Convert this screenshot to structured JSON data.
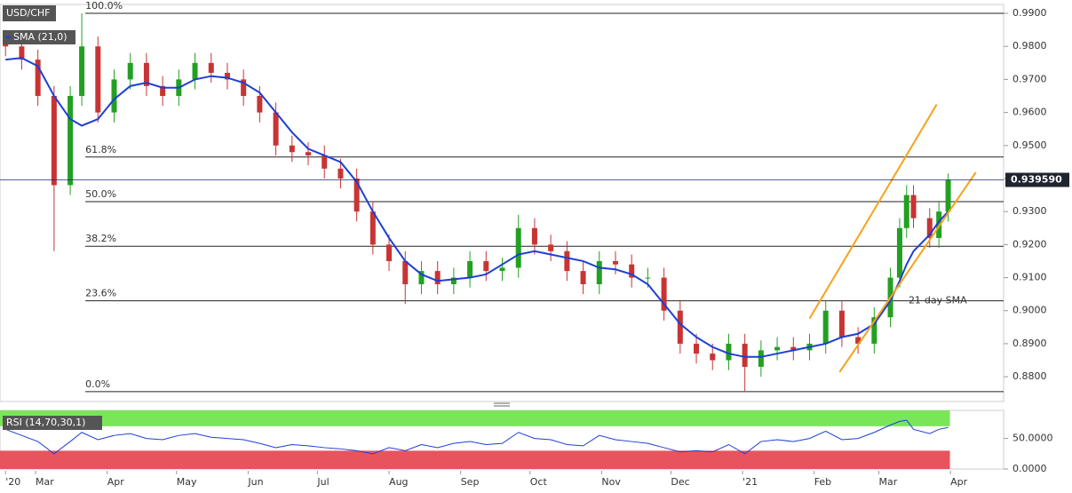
{
  "chart_data": [
    {
      "type": "candlestick",
      "title": "USD/CHF",
      "x": [
        47,
        54,
        61,
        68,
        75,
        80,
        87,
        94,
        101,
        108,
        115,
        122,
        129,
        136,
        143,
        150,
        157,
        164,
        171,
        178,
        185,
        192,
        199,
        206,
        213,
        220,
        227,
        234,
        241,
        248,
        255,
        262,
        269,
        276,
        283,
        290,
        297,
        304,
        311,
        318,
        325,
        332,
        339,
        346,
        353,
        360,
        367,
        374,
        381,
        388,
        395,
        402,
        409,
        416,
        423,
        430,
        434,
        437,
        440,
        447,
        451,
        455
      ],
      "open": [
        0.982,
        0.98,
        0.976,
        0.965,
        0.938,
        0.965,
        0.98,
        0.96,
        0.97,
        0.975,
        0.968,
        0.965,
        0.97,
        0.975,
        0.972,
        0.97,
        0.965,
        0.96,
        0.95,
        0.948,
        0.947,
        0.943,
        0.94,
        0.93,
        0.92,
        0.915,
        0.908,
        0.912,
        0.908,
        0.91,
        0.915,
        0.912,
        0.913,
        0.925,
        0.92,
        0.918,
        0.912,
        0.908,
        0.915,
        0.914,
        0.91,
        0.91,
        0.9,
        0.89,
        0.887,
        0.885,
        0.89,
        0.883,
        0.888,
        0.889,
        0.888,
        0.89,
        0.9,
        0.892,
        0.89,
        0.898,
        0.91,
        0.925,
        0.935,
        0.928,
        0.922,
        0.93
      ],
      "high": [
        0.985,
        0.983,
        0.979,
        0.968,
        0.968,
        0.99,
        0.983,
        0.973,
        0.978,
        0.978,
        0.971,
        0.973,
        0.978,
        0.978,
        0.975,
        0.973,
        0.968,
        0.963,
        0.953,
        0.951,
        0.95,
        0.946,
        0.943,
        0.933,
        0.923,
        0.918,
        0.915,
        0.915,
        0.913,
        0.918,
        0.918,
        0.916,
        0.929,
        0.928,
        0.923,
        0.921,
        0.915,
        0.918,
        0.918,
        0.917,
        0.913,
        0.913,
        0.903,
        0.893,
        0.89,
        0.893,
        0.893,
        0.891,
        0.892,
        0.892,
        0.893,
        0.903,
        0.903,
        0.895,
        0.901,
        0.913,
        0.928,
        0.938,
        0.938,
        0.931,
        0.933,
        0.9415
      ],
      "low": [
        0.977,
        0.973,
        0.962,
        0.918,
        0.935,
        0.962,
        0.957,
        0.957,
        0.967,
        0.965,
        0.962,
        0.962,
        0.967,
        0.969,
        0.967,
        0.962,
        0.957,
        0.947,
        0.945,
        0.944,
        0.94,
        0.937,
        0.927,
        0.917,
        0.912,
        0.902,
        0.905,
        0.905,
        0.905,
        0.907,
        0.909,
        0.909,
        0.91,
        0.917,
        0.915,
        0.909,
        0.905,
        0.905,
        0.911,
        0.907,
        0.907,
        0.897,
        0.887,
        0.884,
        0.882,
        0.882,
        0.8757,
        0.88,
        0.885,
        0.885,
        0.885,
        0.887,
        0.889,
        0.887,
        0.887,
        0.895,
        0.907,
        0.922,
        0.925,
        0.919,
        0.919,
        0.927
      ],
      "close": [
        0.98,
        0.976,
        0.965,
        0.938,
        0.965,
        0.98,
        0.96,
        0.97,
        0.975,
        0.968,
        0.965,
        0.97,
        0.975,
        0.972,
        0.97,
        0.965,
        0.96,
        0.95,
        0.948,
        0.947,
        0.943,
        0.94,
        0.93,
        0.92,
        0.915,
        0.908,
        0.912,
        0.908,
        0.91,
        0.915,
        0.912,
        0.913,
        0.925,
        0.92,
        0.918,
        0.912,
        0.908,
        0.915,
        0.914,
        0.91,
        0.91,
        0.9,
        0.89,
        0.887,
        0.885,
        0.89,
        0.883,
        0.888,
        0.889,
        0.888,
        0.89,
        0.9,
        0.892,
        0.89,
        0.898,
        0.91,
        0.925,
        0.935,
        0.928,
        0.922,
        0.93,
        0.93959
      ],
      "up_color": "#22a022",
      "down_color": "#c83434",
      "series": [
        {
          "name": "SMA (21,0)",
          "color": "#1c3fd6",
          "values": [
            0.976,
            0.9765,
            0.974,
            0.965,
            0.958,
            0.956,
            0.958,
            0.964,
            0.968,
            0.969,
            0.9675,
            0.9675,
            0.97,
            0.971,
            0.9705,
            0.969,
            0.966,
            0.96,
            0.954,
            0.949,
            0.947,
            0.945,
            0.939,
            0.93,
            0.922,
            0.915,
            0.911,
            0.909,
            0.9095,
            0.91,
            0.911,
            0.914,
            0.917,
            0.918,
            0.917,
            0.916,
            0.915,
            0.913,
            0.9125,
            0.911,
            0.908,
            0.902,
            0.896,
            0.892,
            0.889,
            0.887,
            0.886,
            0.886,
            0.887,
            0.888,
            0.889,
            0.89,
            0.892,
            0.893,
            0.896,
            0.903,
            0.909,
            0.914,
            0.918,
            0.923,
            0.927,
            0.93
          ]
        }
      ],
      "fib_levels": [
        {
          "label": "100.0%",
          "value": 0.99
        },
        {
          "label": "61.8%",
          "value": 0.9465
        },
        {
          "label": "50.0%",
          "value": 0.933
        },
        {
          "label": "38.2%",
          "value": 0.9195
        },
        {
          "label": "23.6%",
          "value": 0.903
        },
        {
          "label": "0.0%",
          "value": 0.8755
        }
      ],
      "trendlines": {
        "color": "#f5a31a",
        "lines": [
          {
            "x": [
              395,
              450
            ],
            "y": [
              0.8976,
              0.9624
            ]
          },
          {
            "x": [
              408,
              467
            ],
            "y": [
              0.8814,
              0.9419
            ]
          }
        ]
      },
      "annotation": {
        "text": "21-day SMA",
        "color": "#5b5fc7"
      },
      "last_price": {
        "value": 0.93959,
        "label": "0.939590"
      },
      "xlim": [
        44.6,
        479
      ],
      "xticks": [
        {
          "value": 47,
          "label": "'20"
        },
        {
          "value": 60,
          "label": "Mar"
        },
        {
          "value": 91,
          "label": "Apr"
        },
        {
          "value": 121,
          "label": "May"
        },
        {
          "value": 152,
          "label": "Jun"
        },
        {
          "value": 182,
          "label": "Jul"
        },
        {
          "value": 213,
          "label": "Aug"
        },
        {
          "value": 244,
          "label": "Sep"
        },
        {
          "value": 274,
          "label": "Oct"
        },
        {
          "value": 305,
          "label": "Nov"
        },
        {
          "value": 335,
          "label": "Dec"
        },
        {
          "value": 366,
          "label": "'21"
        },
        {
          "value": 397,
          "label": "Feb"
        },
        {
          "value": 425,
          "label": "Mar"
        },
        {
          "value": 456,
          "label": "Apr"
        }
      ],
      "ylim": [
        0.8725,
        0.9927
      ],
      "yticks": [
        {
          "value": 0.88,
          "label": "0.8800"
        },
        {
          "value": 0.89,
          "label": "0.8900"
        },
        {
          "value": 0.9,
          "label": "0.9000"
        },
        {
          "value": 0.91,
          "label": "0.9100"
        },
        {
          "value": 0.92,
          "label": "0.9200"
        },
        {
          "value": 0.93,
          "label": "0.9300"
        },
        {
          "value": 0.94,
          "label": "0.9400"
        },
        {
          "value": 0.95,
          "label": "0.9500"
        },
        {
          "value": 0.96,
          "label": "0.9600"
        },
        {
          "value": 0.97,
          "label": "0.9700"
        },
        {
          "value": 0.98,
          "label": "0.9800"
        },
        {
          "value": 0.99,
          "label": "0.9900"
        }
      ]
    },
    {
      "type": "line",
      "title": "RSI (14,70,30,1)",
      "x": [
        47,
        54,
        61,
        68,
        75,
        80,
        87,
        94,
        101,
        108,
        115,
        122,
        129,
        136,
        143,
        150,
        157,
        164,
        171,
        178,
        185,
        192,
        199,
        206,
        213,
        220,
        227,
        234,
        241,
        248,
        255,
        262,
        269,
        276,
        283,
        290,
        297,
        304,
        311,
        318,
        325,
        332,
        339,
        346,
        353,
        360,
        367,
        374,
        381,
        388,
        395,
        402,
        409,
        416,
        423,
        430,
        434,
        437,
        440,
        447,
        451,
        455
      ],
      "values": [
        65,
        55,
        45,
        25,
        45,
        60,
        48,
        55,
        58,
        50,
        48,
        55,
        58,
        52,
        50,
        48,
        42,
        35,
        40,
        38,
        35,
        33,
        30,
        25,
        35,
        30,
        40,
        35,
        42,
        45,
        40,
        42,
        60,
        50,
        48,
        40,
        38,
        55,
        48,
        45,
        42,
        35,
        28,
        30,
        28,
        40,
        25,
        45,
        48,
        45,
        50,
        62,
        48,
        50,
        60,
        72,
        78,
        80,
        65,
        58,
        65,
        68
      ],
      "color": "#1c3fd6",
      "overbought": 70,
      "oversold": 30,
      "overbought_color": "#7be55a",
      "oversold_color": "#e8545e",
      "ylim": [
        0,
        96
      ],
      "yticks": [
        {
          "value": 50,
          "label": "50.0000"
        },
        {
          "value": 0,
          "label": "0.0000"
        }
      ]
    }
  ]
}
